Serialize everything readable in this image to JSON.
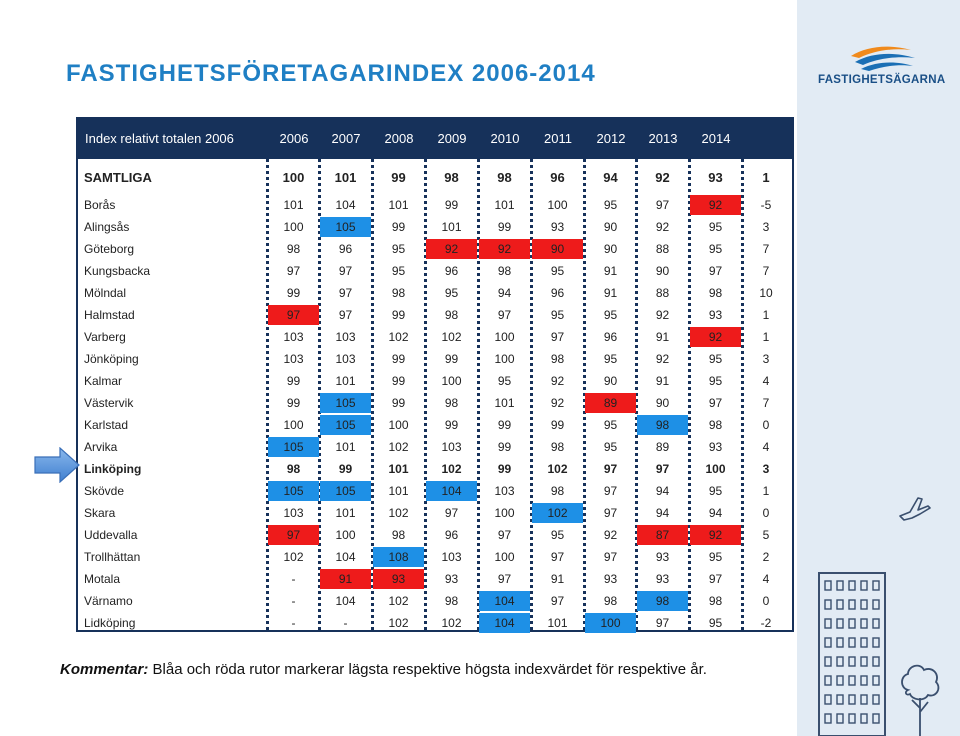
{
  "title": "FASTIGHETSFÖRETAGARINDEX 2006-2014",
  "logo_text": "FASTIGHETSÄGARNA",
  "table": {
    "header_label": "Index relativt totalen 2006",
    "years": [
      "2006",
      "2007",
      "2008",
      "2009",
      "2010",
      "2011",
      "2012",
      "2013",
      "2014"
    ],
    "rows": [
      {
        "name": "SAMTLIGA",
        "values": [
          "100",
          "101",
          "99",
          "98",
          "98",
          "96",
          "94",
          "92",
          "93"
        ],
        "diff": "1"
      },
      {
        "name": "Borås",
        "values": [
          "101",
          "104",
          "101",
          "99",
          "101",
          "100",
          "95",
          "97",
          "92"
        ],
        "diff": "-5"
      },
      {
        "name": "Alingsås",
        "values": [
          "100",
          "105",
          "99",
          "101",
          "99",
          "93",
          "90",
          "92",
          "95"
        ],
        "diff": "3"
      },
      {
        "name": "Göteborg",
        "values": [
          "98",
          "96",
          "95",
          "92",
          "92",
          "90",
          "90",
          "88",
          "95"
        ],
        "diff": "7"
      },
      {
        "name": "Kungsbacka",
        "values": [
          "97",
          "97",
          "95",
          "96",
          "98",
          "95",
          "91",
          "90",
          "97"
        ],
        "diff": "7"
      },
      {
        "name": "Mölndal",
        "values": [
          "99",
          "97",
          "98",
          "95",
          "94",
          "96",
          "91",
          "88",
          "98"
        ],
        "diff": "10"
      },
      {
        "name": "Halmstad",
        "values": [
          "97",
          "97",
          "99",
          "98",
          "97",
          "95",
          "95",
          "92",
          "93"
        ],
        "diff": "1"
      },
      {
        "name": "Varberg",
        "values": [
          "103",
          "103",
          "102",
          "102",
          "100",
          "97",
          "96",
          "91",
          "92"
        ],
        "diff": "1"
      },
      {
        "name": "Jönköping",
        "values": [
          "103",
          "103",
          "99",
          "99",
          "100",
          "98",
          "95",
          "92",
          "95"
        ],
        "diff": "3"
      },
      {
        "name": "Kalmar",
        "values": [
          "99",
          "101",
          "99",
          "100",
          "95",
          "92",
          "90",
          "91",
          "95"
        ],
        "diff": "4"
      },
      {
        "name": "Västervik",
        "values": [
          "99",
          "105",
          "99",
          "98",
          "101",
          "92",
          "89",
          "90",
          "97"
        ],
        "diff": "7"
      },
      {
        "name": "Karlstad",
        "values": [
          "100",
          "105",
          "100",
          "99",
          "99",
          "99",
          "95",
          "98",
          "98"
        ],
        "diff": "0"
      },
      {
        "name": "Arvika",
        "values": [
          "105",
          "101",
          "102",
          "103",
          "99",
          "98",
          "95",
          "89",
          "93"
        ],
        "diff": "4"
      },
      {
        "name": "Linköping",
        "values": [
          "98",
          "99",
          "101",
          "102",
          "99",
          "102",
          "97",
          "97",
          "100"
        ],
        "diff": "3"
      },
      {
        "name": "Skövde",
        "values": [
          "105",
          "105",
          "101",
          "104",
          "103",
          "98",
          "97",
          "94",
          "95"
        ],
        "diff": "1"
      },
      {
        "name": "Skara",
        "values": [
          "103",
          "101",
          "102",
          "97",
          "100",
          "102",
          "97",
          "94",
          "94"
        ],
        "diff": "0"
      },
      {
        "name": "Uddevalla",
        "values": [
          "97",
          "100",
          "98",
          "96",
          "97",
          "95",
          "92",
          "87",
          "92"
        ],
        "diff": "5"
      },
      {
        "name": "Trollhättan",
        "values": [
          "102",
          "104",
          "108",
          "103",
          "100",
          "97",
          "97",
          "93",
          "95"
        ],
        "diff": "2"
      },
      {
        "name": "Motala",
        "values": [
          "-",
          "91",
          "93",
          "93",
          "97",
          "91",
          "93",
          "93",
          "97"
        ],
        "diff": "4"
      },
      {
        "name": "Värnamo",
        "values": [
          "-",
          "104",
          "102",
          "98",
          "104",
          "97",
          "98",
          "98",
          "98"
        ],
        "diff": "0"
      },
      {
        "name": "Lidköping",
        "values": [
          "-",
          "-",
          "102",
          "102",
          "104",
          "101",
          "100",
          "97",
          "95"
        ],
        "diff": "-2"
      }
    ]
  },
  "comment": {
    "label": "Kommentar:",
    "text": " Blåa och röda rutor markerar lägsta respektive högsta indexvärdet för respektive år."
  },
  "colors": {
    "low_marker": "#1e90e6",
    "high_marker": "#ee1b1b",
    "header_bg": "#16315a",
    "title": "#1f7fc4"
  }
}
